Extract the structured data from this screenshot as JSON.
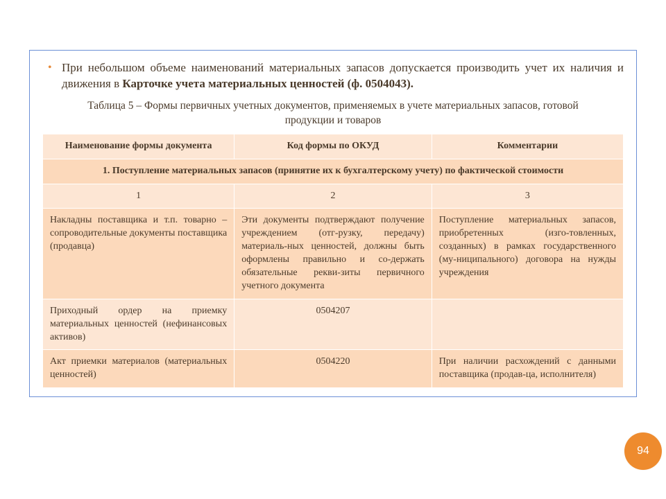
{
  "intro": {
    "pre": "При небольшом объеме наименований материальных запасов допускается производить учет их наличия и движения в ",
    "bold": "Карточке учета материальных ценностей (ф. 0504043)."
  },
  "caption": "Таблица 5 – Формы первичных учетных документов, применяемых в учете материальных запасов, готовой продукции и товаров",
  "table": {
    "col_widths": [
      "33%",
      "34%",
      "33%"
    ],
    "header_bg": "#fde6d4",
    "row_a_bg": "#fcd9bb",
    "row_b_bg": "#fde6d4",
    "border_color": "#ffffff",
    "headers": [
      "Наименование формы документа",
      "Код формы по ОКУД",
      "Комментарии"
    ],
    "section": "1. Поступление материальных запасов (принятие их к бухгалтерскому учету) по фактической стоимости",
    "num_row": [
      "1",
      "2",
      "3"
    ],
    "rows": [
      {
        "c1": "Накладны поставщика и т.п. товарно – сопроводительные документы поставщика (продавца)",
        "c2": "Эти документы подтверждают получение учреждением (отг-рузку, передачу) материаль-ных ценностей, должны быть оформлены правильно и со-держать обязательные рекви-зиты первичного учетного документа",
        "c3": "Поступление материальных запасов, приобретенных (изго-товленных, созданных) в рамках государственного (му-ниципального) договора на нужды учреждения"
      },
      {
        "c1": "Приходный ордер на приемку материальных ценностей (нефинансовых активов)",
        "c2": "0504207",
        "c3": ""
      },
      {
        "c1": "Акт приемки материалов (материальных ценностей)",
        "c2": "0504220",
        "c3": "При наличии расхождений с данными поставщика (продав-ца, исполнителя)"
      }
    ]
  },
  "page_number": "94",
  "colors": {
    "frame_border": "#6b8fd6",
    "text": "#4a3a2a",
    "bullet": "#e68a3a",
    "badge_bg": "#ee8b2e",
    "badge_text": "#ffffff"
  }
}
